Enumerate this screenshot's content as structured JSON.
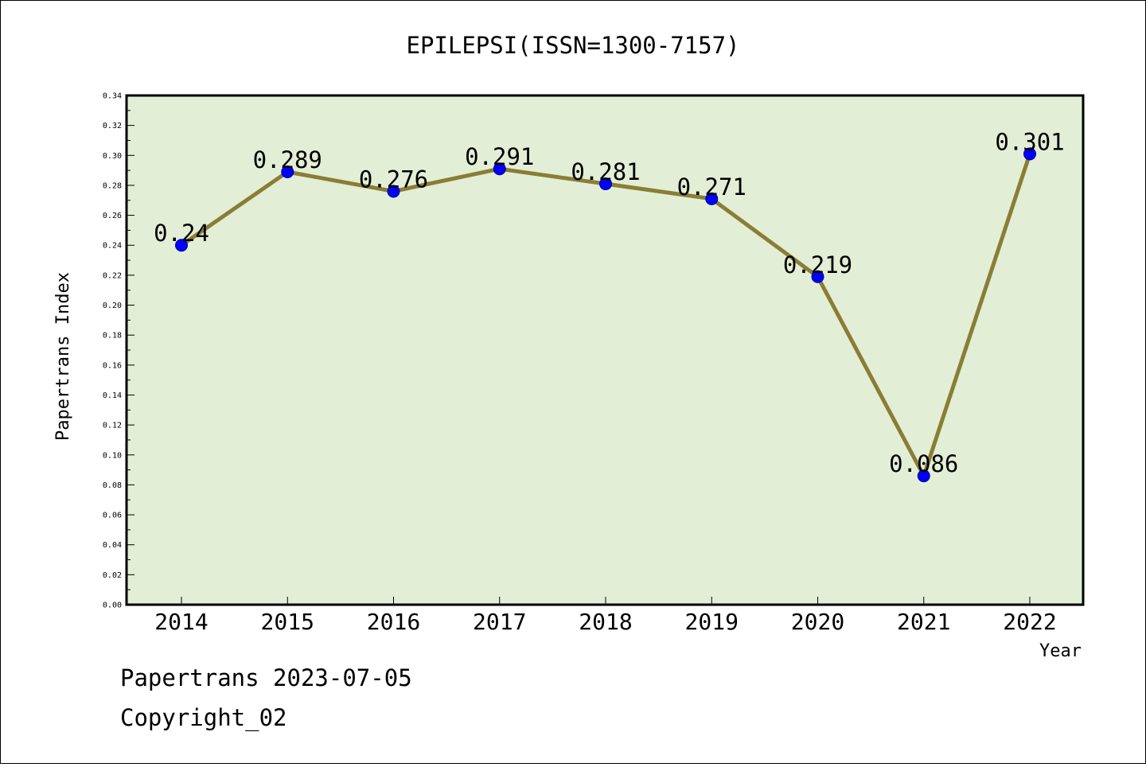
{
  "footer": {
    "line1": "Papertrans 2023-07-05",
    "line2": "Copyright_02"
  },
  "chart_data": {
    "type": "line",
    "title": "EPILEPSI(ISSN=1300-7157)",
    "xlabel": "Year",
    "ylabel": "Papertrans Index",
    "categories": [
      "2014",
      "2015",
      "2016",
      "2017",
      "2018",
      "2019",
      "2020",
      "2021",
      "2022"
    ],
    "values": [
      0.24,
      0.289,
      0.276,
      0.291,
      0.281,
      0.271,
      0.219,
      0.086,
      0.301
    ],
    "data_labels": [
      "0.24",
      "0.289",
      "0.276",
      "0.291",
      "0.281",
      "0.271",
      "0.219",
      "0.086",
      "0.301"
    ],
    "ylim": [
      0,
      0.34
    ],
    "yticks": [
      "0.00",
      "0.02",
      "0.04",
      "0.06",
      "0.08",
      "0.10",
      "0.12",
      "0.14",
      "0.16",
      "0.18",
      "0.20",
      "0.22",
      "0.24",
      "0.26",
      "0.28",
      "0.30",
      "0.32",
      "0.34"
    ],
    "grid": false,
    "legend": "none",
    "colors": {
      "plot_background": "#e2efd6",
      "line": "#8b7d36",
      "marker": "#0000ff"
    }
  }
}
